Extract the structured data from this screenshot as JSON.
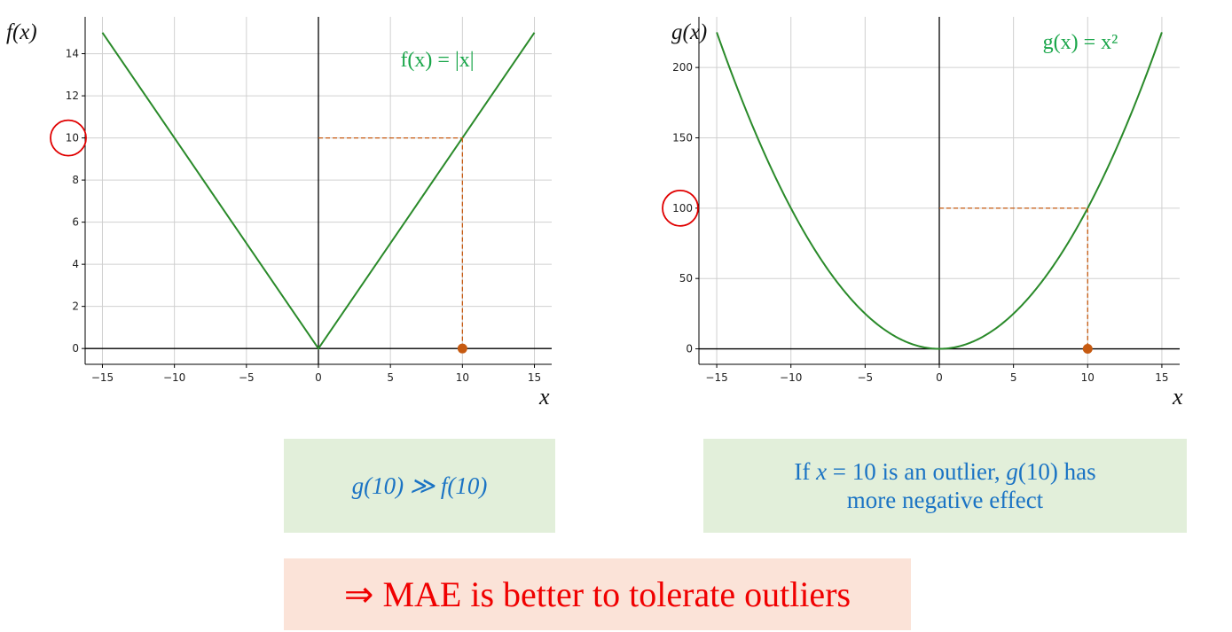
{
  "chart_data": [
    {
      "type": "line",
      "function": "abs",
      "ylabel": "f(x)",
      "xlabel": "x",
      "equation": "f(x) = |x|",
      "x_ticks": [
        -15,
        -10,
        -5,
        0,
        5,
        10,
        15
      ],
      "x_tick_labels": [
        "−15",
        "−10",
        "−5",
        "0",
        "5",
        "10",
        "15"
      ],
      "y_ticks": [
        0,
        2,
        4,
        6,
        8,
        10,
        12,
        14
      ],
      "y_tick_labels": [
        "0",
        "2",
        "4",
        "6",
        "8",
        "10",
        "12",
        "14"
      ],
      "xlim": [
        -16.2,
        16.2
      ],
      "ylim": [
        -0.75,
        15.75
      ],
      "x_range": [
        -15,
        15
      ],
      "grid": true,
      "line_color": "#2a8a2a",
      "highlight_point": {
        "x": 10,
        "y": 10
      },
      "highlight_color": "#c65a11",
      "circled_tick": "10"
    },
    {
      "type": "line",
      "function": "square",
      "ylabel": "g(x)",
      "xlabel": "x",
      "equation": "g(x) = x²",
      "x_ticks": [
        -15,
        -10,
        -5,
        0,
        5,
        10,
        15
      ],
      "x_tick_labels": [
        "−15",
        "−10",
        "−5",
        "0",
        "5",
        "10",
        "15"
      ],
      "y_ticks": [
        0,
        50,
        100,
        150,
        200
      ],
      "y_tick_labels": [
        "0",
        "50",
        "100",
        "150",
        "200"
      ],
      "xlim": [
        -16.2,
        16.2
      ],
      "ylim": [
        -11,
        236
      ],
      "x_range": [
        -15,
        15
      ],
      "grid": true,
      "line_color": "#2a8a2a",
      "highlight_point": {
        "x": 10,
        "y": 100
      },
      "highlight_color": "#c65a11",
      "circled_tick": "100"
    }
  ],
  "notes": {
    "compare": "g(10) ≫ f(10)",
    "outlier_line1_pre": "If ",
    "outlier_x": "x",
    "outlier_eq": " = 10 is an outlier, ",
    "outlier_g": "g",
    "outlier_arg": "(10) has",
    "outlier_line2": "more negative effect",
    "conclusion": "⇒ MAE is better to tolerate outliers"
  },
  "colors": {
    "curve": "#2a8a2a",
    "guide": "#c65a11",
    "circle": "#e00000",
    "equation": "#1aa64a",
    "note_text": "#1a73c4",
    "conclusion_text": "#f00000",
    "note_bg": "#e2efda",
    "conclusion_bg": "#fbe3d8"
  }
}
